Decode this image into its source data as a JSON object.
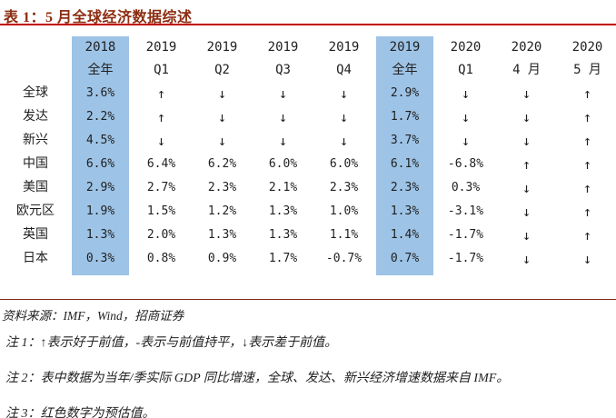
{
  "title": "表 1：5 月全球经济数据综述",
  "table": {
    "columns": [
      {
        "year": "2018",
        "period": "全年",
        "highlight": true
      },
      {
        "year": "2019",
        "period": "Q1",
        "highlight": false
      },
      {
        "year": "2019",
        "period": "Q2",
        "highlight": false
      },
      {
        "year": "2019",
        "period": "Q3",
        "highlight": false
      },
      {
        "year": "2019",
        "period": "Q4",
        "highlight": false
      },
      {
        "year": "2019",
        "period": "全年",
        "highlight": true
      },
      {
        "year": "2020",
        "period": "Q1",
        "highlight": false
      },
      {
        "year": "2020",
        "period": "4 月",
        "highlight": false
      },
      {
        "year": "2020",
        "period": "5 月",
        "highlight": false
      }
    ],
    "rows": [
      {
        "label": "全球",
        "values": [
          "3.6%",
          "↑",
          "↓",
          "↓",
          "↓",
          "2.9%",
          "↓",
          "↓",
          "↑"
        ]
      },
      {
        "label": "发达",
        "values": [
          "2.2%",
          "↑",
          "↓",
          "↓",
          "↓",
          "1.7%",
          "↓",
          "↓",
          "↑"
        ]
      },
      {
        "label": "新兴",
        "values": [
          "4.5%",
          "↓",
          "↓",
          "↓",
          "↓",
          "3.7%",
          "↓",
          "↓",
          "↑"
        ]
      },
      {
        "label": "中国",
        "values": [
          "6.6%",
          "6.4%",
          "6.2%",
          "6.0%",
          "6.0%",
          "6.1%",
          "-6.8%",
          "↑",
          "↑"
        ]
      },
      {
        "label": "美国",
        "values": [
          "2.9%",
          "2.7%",
          "2.3%",
          "2.1%",
          "2.3%",
          "2.3%",
          "0.3%",
          "↓",
          "↑"
        ]
      },
      {
        "label": "欧元区",
        "values": [
          "1.9%",
          "1.5%",
          "1.2%",
          "1.3%",
          "1.0%",
          "1.3%",
          "-3.1%",
          "↓",
          "↑"
        ]
      },
      {
        "label": "英国",
        "values": [
          "1.3%",
          "2.0%",
          "1.3%",
          "1.3%",
          "1.1%",
          "1.4%",
          "-1.7%",
          "↓",
          "↑"
        ]
      },
      {
        "label": "日本",
        "values": [
          "0.3%",
          "0.8%",
          "0.9%",
          "1.7%",
          "-0.7%",
          "0.7%",
          "-1.7%",
          "↓",
          "↓"
        ]
      }
    ]
  },
  "source": "资料来源：IMF，Wind，招商证券",
  "notes": [
    "注 1：↑表示好于前值，-表示与前值持平，↓表示差于前值。",
    "注 2：表中数据为当年/季实际 GDP 同比增速，全球、发达、新兴经济增速数据来自 IMF。",
    "注 3：红色数字为预估值。"
  ],
  "legend": {
    "up_arrow": "↑",
    "down_arrow": "↓"
  },
  "colors": {
    "highlight_blue": "#9DC3E6",
    "title_color": "#8C2D11",
    "top_rule": "#C00000",
    "bottom_rule": "#7E2817",
    "text": "#1F1F1F"
  }
}
